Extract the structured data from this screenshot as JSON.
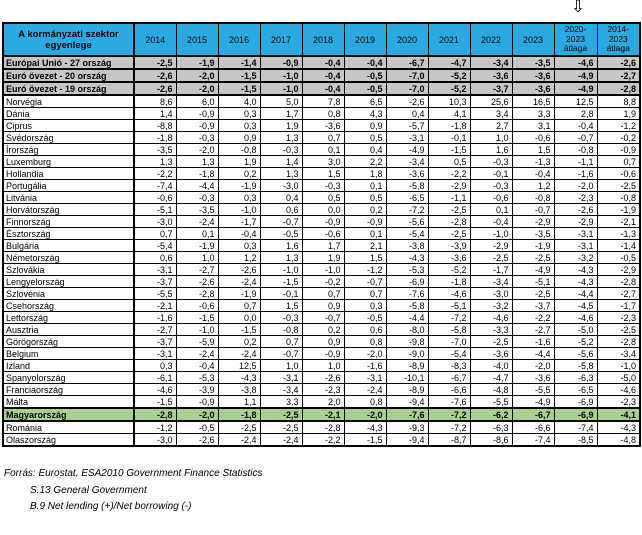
{
  "arrow": {
    "glyph": "⇩"
  },
  "colors": {
    "header_bg": "#29ABE2",
    "aggregate_row_bg": "#C6C6C6",
    "hungary_row_bg": "#A9D08E",
    "border": "#000000"
  },
  "table": {
    "corner_header": "A kormányzati szektor egyenlege",
    "year_columns": [
      "2014",
      "2015",
      "2016",
      "2017",
      "2018",
      "2019",
      "2020",
      "2021",
      "2022",
      "2023"
    ],
    "avg_columns": [
      "2020-\n2023\nátlaga",
      "2014-\n2023\nátlaga"
    ],
    "rows": [
      {
        "label": "Európai Unió - 27 ország",
        "style": "eu",
        "values": [
          "-2,5",
          "-1,9",
          "-1,4",
          "-0,9",
          "-0,4",
          "-0,4",
          "-6,7",
          "-4,7",
          "-3,4",
          "-3,5",
          "-4,6",
          "-2,6"
        ]
      },
      {
        "label": "Euró övezet - 20 ország",
        "style": "eu",
        "values": [
          "-2,6",
          "-2,0",
          "-1,5",
          "-1,0",
          "-0,4",
          "-0,5",
          "-7,0",
          "-5,2",
          "-3,6",
          "-3,6",
          "-4,9",
          "-2,7"
        ]
      },
      {
        "label": "Euró övezet - 19 ország",
        "style": "eu",
        "values": [
          "-2,6",
          "-2,0",
          "-1,5",
          "-1,0",
          "-0,4",
          "-0,5",
          "-7,0",
          "-5,2",
          "-3,7",
          "-3,6",
          "-4,9",
          "-2,8"
        ]
      },
      {
        "label": "Norvégia",
        "style": "normal",
        "values": [
          "8,6",
          "6,0",
          "4,0",
          "5,0",
          "7,8",
          "6,5",
          "-2,6",
          "10,3",
          "25,6",
          "16,5",
          "12,5",
          "8,8"
        ]
      },
      {
        "label": "Dánia",
        "style": "normal",
        "values": [
          "1,4",
          "-0,9",
          "0,3",
          "1,7",
          "0,8",
          "4,3",
          "0,4",
          "4,1",
          "3,4",
          "3,3",
          "2,8",
          "1,9"
        ]
      },
      {
        "label": "Ciprus",
        "style": "normal",
        "values": [
          "-8,8",
          "-0,9",
          "0,3",
          "1,9",
          "-3,6",
          "0,9",
          "-5,7",
          "-1,8",
          "2,7",
          "3,1",
          "-0,4",
          "-1,2"
        ]
      },
      {
        "label": "Svédország",
        "style": "normal",
        "values": [
          "-1,8",
          "-0,3",
          "0,9",
          "1,3",
          "0,7",
          "0,5",
          "-3,1",
          "-0,1",
          "1,0",
          "-0,6",
          "-0,7",
          "-0,2"
        ]
      },
      {
        "label": "Írország",
        "style": "normal",
        "values": [
          "-3,5",
          "-2,0",
          "-0,8",
          "-0,3",
          "0,1",
          "0,4",
          "-4,9",
          "-1,5",
          "1,6",
          "1,5",
          "-0,8",
          "-0,9"
        ]
      },
      {
        "label": "Luxemburg",
        "style": "normal",
        "values": [
          "1,3",
          "1,3",
          "1,9",
          "1,4",
          "3,0",
          "2,2",
          "-3,4",
          "0,5",
          "-0,3",
          "-1,3",
          "-1,1",
          "0,7"
        ]
      },
      {
        "label": "Hollandia",
        "style": "normal",
        "values": [
          "-2,2",
          "-1,8",
          "0,2",
          "1,3",
          "1,5",
          "1,8",
          "-3,6",
          "-2,2",
          "-0,1",
          "-0,4",
          "-1,6",
          "-0,6"
        ]
      },
      {
        "label": "Portugália",
        "style": "normal",
        "values": [
          "-7,4",
          "-4,4",
          "-1,9",
          "-3,0",
          "-0,3",
          "0,1",
          "-5,8",
          "-2,9",
          "-0,3",
          "1,2",
          "-2,0",
          "-2,5"
        ]
      },
      {
        "label": "Litvánia",
        "style": "normal",
        "values": [
          "-0,6",
          "-0,3",
          "0,3",
          "0,4",
          "0,5",
          "0,5",
          "-6,5",
          "-1,1",
          "-0,6",
          "-0,8",
          "-2,3",
          "-0,8"
        ]
      },
      {
        "label": "Horvátország",
        "style": "normal",
        "values": [
          "-5,1",
          "-3,5",
          "-1,0",
          "0,6",
          "0,0",
          "0,2",
          "-7,2",
          "-2,5",
          "0,1",
          "-0,7",
          "-2,6",
          "-1,9"
        ]
      },
      {
        "label": "Finnország",
        "style": "normal",
        "values": [
          "-3,0",
          "-2,4",
          "-1,7",
          "-0,7",
          "-0,9",
          "-0,9",
          "-5,6",
          "-2,8",
          "-0,4",
          "-2,9",
          "-2,9",
          "-2,1"
        ]
      },
      {
        "label": "Észtország",
        "style": "normal",
        "values": [
          "0,7",
          "0,1",
          "-0,4",
          "-0,5",
          "-0,6",
          "0,1",
          "-5,4",
          "-2,5",
          "-1,0",
          "-3,5",
          "-3,1",
          "-1,3"
        ]
      },
      {
        "label": "Bulgária",
        "style": "normal",
        "values": [
          "-5,4",
          "-1,9",
          "0,3",
          "1,6",
          "1,7",
          "2,1",
          "-3,8",
          "-3,9",
          "-2,9",
          "-1,9",
          "-3,1",
          "-1,4"
        ]
      },
      {
        "label": "Németország",
        "style": "normal",
        "values": [
          "0,6",
          "1,0",
          "1,2",
          "1,3",
          "1,9",
          "1,5",
          "-4,3",
          "-3,6",
          "-2,5",
          "-2,5",
          "-3,2",
          "-0,5"
        ]
      },
      {
        "label": "Szlovákia",
        "style": "normal",
        "values": [
          "-3,1",
          "-2,7",
          "-2,6",
          "-1,0",
          "-1,0",
          "-1,2",
          "-5,3",
          "-5,2",
          "-1,7",
          "-4,9",
          "-4,3",
          "-2,9"
        ]
      },
      {
        "label": "Lengyelország",
        "style": "normal",
        "values": [
          "-3,7",
          "-2,6",
          "-2,4",
          "-1,5",
          "-0,2",
          "-0,7",
          "-6,9",
          "-1,8",
          "-3,4",
          "-5,1",
          "-4,3",
          "-2,8"
        ]
      },
      {
        "label": "Szlovénia",
        "style": "normal",
        "values": [
          "-5,5",
          "-2,8",
          "-1,9",
          "-0,1",
          "0,7",
          "0,7",
          "-7,6",
          "-4,6",
          "-3,0",
          "-2,5",
          "-4,4",
          "-2,7"
        ]
      },
      {
        "label": "Csehország",
        "style": "normal",
        "values": [
          "-2,1",
          "-0,6",
          "0,7",
          "1,5",
          "0,9",
          "0,3",
          "-5,8",
          "-5,1",
          "-3,2",
          "-3,7",
          "-4,5",
          "-1,7"
        ]
      },
      {
        "label": "Lettország",
        "style": "normal",
        "values": [
          "-1,6",
          "-1,5",
          "0,0",
          "-0,3",
          "-0,7",
          "-0,5",
          "-4,4",
          "-7,2",
          "-4,6",
          "-2,2",
          "-4,6",
          "-2,3"
        ]
      },
      {
        "label": "Ausztria",
        "style": "normal",
        "values": [
          "-2,7",
          "-1,0",
          "-1,5",
          "-0,8",
          "0,2",
          "0,6",
          "-8,0",
          "-5,8",
          "-3,3",
          "-2,7",
          "-5,0",
          "-2,5"
        ]
      },
      {
        "label": "Görögország",
        "style": "normal",
        "values": [
          "-3,7",
          "-5,9",
          "0,2",
          "0,7",
          "0,9",
          "0,8",
          "-9,8",
          "-7,0",
          "-2,5",
          "-1,6",
          "-5,2",
          "-2,8"
        ]
      },
      {
        "label": "Belgium",
        "style": "normal",
        "values": [
          "-3,1",
          "-2,4",
          "-2,4",
          "-0,7",
          "-0,9",
          "-2,0",
          "-9,0",
          "-5,4",
          "-3,6",
          "-4,4",
          "-5,6",
          "-3,4"
        ]
      },
      {
        "label": "Izland",
        "style": "normal",
        "values": [
          "0,3",
          "-0,4",
          "12,5",
          "1,0",
          "1,0",
          "-1,6",
          "-8,9",
          "-8,3",
          "-4,0",
          "-2,0",
          "-5,8",
          "-1,0"
        ]
      },
      {
        "label": "Spanyolország",
        "style": "normal",
        "values": [
          "-6,1",
          "-5,3",
          "-4,3",
          "-3,1",
          "-2,6",
          "-3,1",
          "-10,1",
          "-6,7",
          "-4,7",
          "-3,6",
          "-6,3",
          "-5,0"
        ]
      },
      {
        "label": "Franciaország",
        "style": "normal",
        "values": [
          "-4,6",
          "-3,9",
          "-3,8",
          "-3,4",
          "-2,3",
          "-2,4",
          "-8,9",
          "-6,6",
          "-4,8",
          "-5,5",
          "-6,5",
          "-4,6"
        ]
      },
      {
        "label": "Málta",
        "style": "normal",
        "values": [
          "-1,5",
          "-0,9",
          "1,1",
          "3,3",
          "2,0",
          "0,8",
          "-9,4",
          "-7,6",
          "-5,5",
          "-4,9",
          "-6,9",
          "-2,3"
        ]
      },
      {
        "label": "Magyarország",
        "style": "hu",
        "values": [
          "-2,8",
          "-2,0",
          "-1,8",
          "-2,5",
          "-2,1",
          "-2,0",
          "-7,6",
          "-7,2",
          "-6,2",
          "-6,7",
          "-6,9",
          "-4,1"
        ]
      },
      {
        "label": "Románia",
        "style": "normal",
        "values": [
          "-1,2",
          "-0,5",
          "-2,5",
          "-2,5",
          "-2,8",
          "-4,3",
          "-9,3",
          "-7,2",
          "-6,3",
          "-6,6",
          "-7,4",
          "-4,3"
        ]
      },
      {
        "label": "Olaszország",
        "style": "normal",
        "values": [
          "-3,0",
          "-2,6",
          "-2,4",
          "-2,4",
          "-2,2",
          "-1,5",
          "-9,4",
          "-8,7",
          "-8,6",
          "-7,4",
          "-8,5",
          "-4,8"
        ]
      }
    ]
  },
  "footer": {
    "lines": [
      "Forrás: Eurostat, ESA2010 Government Finance Statistics",
      "S.13 General Government",
      "B.9 Net lending (+)/Net borrowing (-)"
    ]
  }
}
